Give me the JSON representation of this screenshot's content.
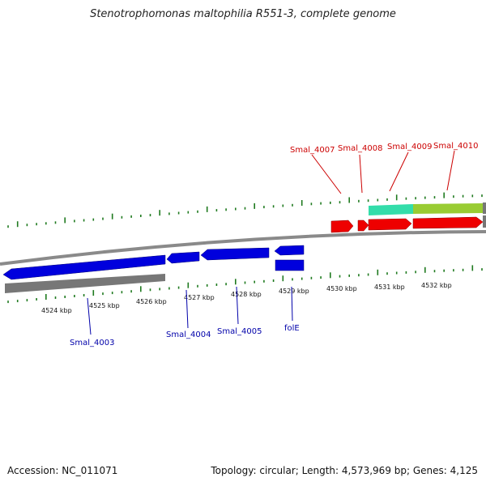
{
  "title": "Stenotrophomonas maltophilia R551-3, complete genome",
  "footer": {
    "accession": "Accession: NC_011071",
    "topology": "Topology: circular; Length: 4,573,969 bp; Genes: 4,125"
  },
  "colors": {
    "forward_cds": "#ee0000",
    "reverse_cds": "#0000dd",
    "gene_bar": "#777777",
    "tick": "#1f7a1f",
    "forward_label": "#cc0000",
    "reverse_label": "#0000aa",
    "rrna": "#33ddaa",
    "trna": "#99cc33"
  },
  "tick_labels": [
    "4524 kbp",
    "4525 kbp",
    "4526 kbp",
    "4527 kbp",
    "4528 kbp",
    "4529 kbp",
    "4530 kbp",
    "4531 kbp",
    "4532 kbp"
  ],
  "forward_labels": [
    "Smal_4007",
    "Smal_4008",
    "Smal_4009",
    "Smal_4010"
  ],
  "reverse_labels": [
    "Smal_4003",
    "Smal_4004",
    "Smal_4005",
    "folE"
  ]
}
